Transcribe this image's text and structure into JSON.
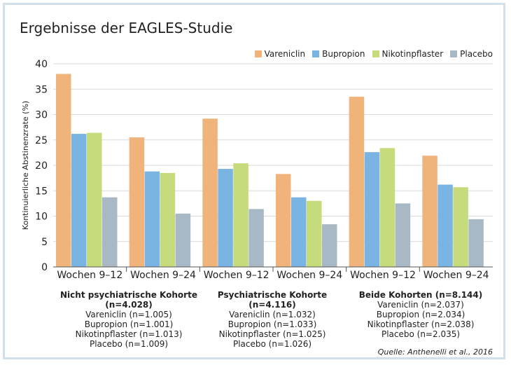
{
  "title": "Ergebnisse der EAGLES-Studie",
  "source": "Quelle: Anthenelli et al., 2016",
  "colors": {
    "Vareniclin": "#f0b47a",
    "Bupropion": "#79b4e2",
    "Nikotinpflaster": "#c5db7c",
    "Placebo": "#a8b8c4"
  },
  "chart_data": {
    "type": "bar",
    "title": "Ergebnisse der EAGLES-Studie",
    "ylabel": "Kontinuierliche Abstinenzrate (%)",
    "ylim": [
      0,
      40
    ],
    "yticks": [
      0,
      5,
      10,
      15,
      20,
      25,
      30,
      35,
      40
    ],
    "categories": [
      "Wochen 9–12",
      "Wochen 9–24",
      "Wochen 9–12",
      "Wochen 9–24",
      "Wochen 9–12",
      "Wochen 9–24"
    ],
    "legend_position": "top-right",
    "grid": true,
    "series": [
      {
        "name": "Vareniclin",
        "values": [
          38.0,
          25.5,
          29.2,
          18.3,
          33.5,
          21.9
        ]
      },
      {
        "name": "Bupropion",
        "values": [
          26.2,
          18.8,
          19.3,
          13.7,
          22.6,
          16.2
        ]
      },
      {
        "name": "Nikotinpflaster",
        "values": [
          26.4,
          18.5,
          20.4,
          13.0,
          23.4,
          15.7
        ]
      },
      {
        "name": "Placebo",
        "values": [
          13.7,
          10.5,
          11.4,
          8.4,
          12.5,
          9.4
        ]
      }
    ]
  },
  "groups": [
    {
      "head": "Nicht psychiatrische Kohorte (n=4.028)",
      "lines": [
        "Vareniclin (n=1.005)",
        "Bupropion (n=1.001)",
        "Nikotinpflaster (n=1.013)",
        "Placebo (n=1.009)"
      ]
    },
    {
      "head": "Psychiatrische Kohorte (n=4.116)",
      "lines": [
        "Vareniclin (n=1.032)",
        "Bupropion (n=1.033)",
        "Nikotinpflaster (n=1.025)",
        "Placebo (n=1.026)"
      ]
    },
    {
      "head": "Beide Kohorten (n=8.144)",
      "lines": [
        "Vareniclin (n=2.037)",
        "Bupropion (n=2.034)",
        "Nikotinpflaster (n=2.038)",
        "Placebo (n=2.035)"
      ]
    }
  ]
}
